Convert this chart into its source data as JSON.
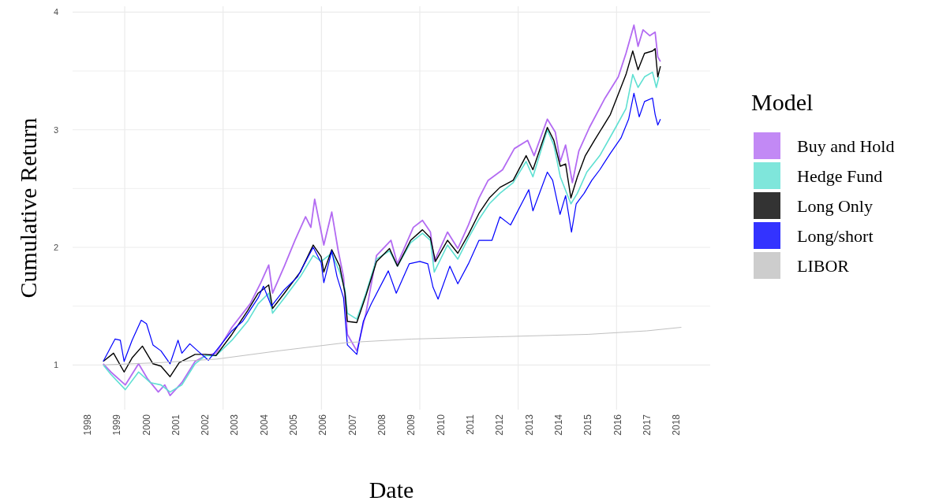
{
  "chart_data": {
    "type": "line",
    "xlabel": "Date",
    "ylabel": "Cumulative Return",
    "legend_title": "Model",
    "legend": "right",
    "grid": true,
    "marker": "none",
    "line_style": "solid",
    "xlim": [
      1997.5,
      2019.15
    ],
    "ylim": [
      0.62,
      4.05
    ],
    "xticks": [
      1998,
      1999,
      2000,
      2001,
      2002,
      2003,
      2004,
      2005,
      2006,
      2007,
      2008,
      2009,
      2010,
      2011,
      2012,
      2013,
      2014,
      2015,
      2016,
      2017,
      2018,
      {
        "value": 1999.27,
        "label": null
      },
      {
        "value": 2002.61,
        "label": null
      },
      {
        "value": 2005.95,
        "label": null
      },
      {
        "value": 2009.29,
        "label": null
      },
      {
        "value": 2012.63,
        "label": null
      },
      {
        "value": 2015.97,
        "label": null
      }
    ],
    "yticks": [
      1,
      2,
      3,
      4,
      {
        "value": 1.5,
        "label": null
      },
      {
        "value": 2.5,
        "label": null
      },
      {
        "value": 3.5,
        "label": null
      }
    ],
    "series": [
      {
        "name": "Buy and Hold",
        "color": "#b36bf2",
        "x": [
          1998.54,
          1998.8,
          1999.29,
          1999.74,
          2000.05,
          2000.41,
          2000.63,
          2000.81,
          2001.21,
          2001.66,
          2002.02,
          2002.37,
          2002.91,
          2003.53,
          2003.89,
          2004.16,
          2004.29,
          2004.69,
          2005.05,
          2005.41,
          2005.59,
          2005.72,
          2006.03,
          2006.3,
          2006.52,
          2006.7,
          2006.83,
          2007.15,
          2007.46,
          2007.82,
          2008.31,
          2008.53,
          2009.07,
          2009.38,
          2009.65,
          2009.78,
          2010.23,
          2010.58,
          2010.94,
          2011.3,
          2011.61,
          2012.1,
          2012.5,
          2012.95,
          2013.17,
          2013.62,
          2013.89,
          2014.06,
          2014.24,
          2014.47,
          2014.69,
          2015.05,
          2015.58,
          2016.03,
          2016.29,
          2016.56,
          2016.7,
          2016.87,
          2017.1,
          2017.28,
          2017.37,
          2017.46
        ],
        "values": [
          1.01,
          0.94,
          0.83,
          1.01,
          0.88,
          0.77,
          0.83,
          0.74,
          0.85,
          1.03,
          1.08,
          1.1,
          1.32,
          1.52,
          1.7,
          1.85,
          1.61,
          1.84,
          2.06,
          2.26,
          2.17,
          2.41,
          2.02,
          2.3,
          1.97,
          1.75,
          1.26,
          1.12,
          1.44,
          1.93,
          2.06,
          1.86,
          2.17,
          2.23,
          2.13,
          1.88,
          2.13,
          1.99,
          2.19,
          2.42,
          2.57,
          2.66,
          2.84,
          2.91,
          2.78,
          3.09,
          2.98,
          2.73,
          2.87,
          2.55,
          2.82,
          3.02,
          3.27,
          3.45,
          3.65,
          3.89,
          3.71,
          3.85,
          3.8,
          3.83,
          3.62,
          3.58
        ]
      },
      {
        "name": "Hedge Fund",
        "color": "#5fe0d2",
        "x": [
          1998.54,
          1998.8,
          1999.29,
          1999.74,
          2000.14,
          2000.5,
          2000.81,
          2001.21,
          2001.66,
          2002.02,
          2002.37,
          2002.91,
          2003.44,
          2003.8,
          2004.16,
          2004.29,
          2004.69,
          2005.23,
          2005.67,
          2005.94,
          2006.3,
          2006.57,
          2006.75,
          2006.83,
          2007.15,
          2007.46,
          2007.82,
          2008.26,
          2008.53,
          2008.98,
          2009.38,
          2009.65,
          2009.78,
          2010.23,
          2010.58,
          2010.94,
          2011.3,
          2011.65,
          2012.01,
          2012.46,
          2012.9,
          2013.13,
          2013.62,
          2013.84,
          2014.06,
          2014.42,
          2014.64,
          2014.96,
          2015.4,
          2015.94,
          2016.29,
          2016.52,
          2016.7,
          2016.92,
          2017.19,
          2017.32,
          2017.41
        ],
        "values": [
          1.0,
          0.92,
          0.79,
          0.94,
          0.85,
          0.83,
          0.77,
          0.83,
          1.01,
          1.08,
          1.08,
          1.21,
          1.37,
          1.52,
          1.61,
          1.44,
          1.57,
          1.75,
          1.93,
          1.88,
          1.95,
          1.79,
          1.64,
          1.44,
          1.39,
          1.61,
          1.9,
          1.97,
          1.84,
          2.04,
          2.12,
          2.06,
          1.79,
          2.02,
          1.9,
          2.08,
          2.24,
          2.37,
          2.46,
          2.55,
          2.73,
          2.6,
          3.0,
          2.87,
          2.6,
          2.37,
          2.46,
          2.64,
          2.78,
          3.02,
          3.18,
          3.47,
          3.36,
          3.45,
          3.49,
          3.36,
          3.45
        ]
      },
      {
        "name": "Long Only",
        "color": "#000000",
        "x": [
          1998.54,
          1998.89,
          1999.25,
          1999.52,
          1999.87,
          2000.23,
          2000.5,
          2000.81,
          2001.12,
          2001.66,
          2002.02,
          2002.37,
          2002.91,
          2003.44,
          2003.8,
          2004.16,
          2004.29,
          2004.69,
          2005.23,
          2005.67,
          2005.94,
          2006.03,
          2006.3,
          2006.57,
          2006.75,
          2006.83,
          2007.15,
          2007.46,
          2007.82,
          2008.26,
          2008.53,
          2008.98,
          2009.38,
          2009.65,
          2009.82,
          2010.23,
          2010.58,
          2010.94,
          2011.3,
          2011.65,
          2012.01,
          2012.46,
          2012.9,
          2013.13,
          2013.62,
          2013.84,
          2014.06,
          2014.24,
          2014.42,
          2014.64,
          2014.91,
          2015.22,
          2015.76,
          2016.29,
          2016.52,
          2016.7,
          2016.92,
          2017.19,
          2017.28,
          2017.37,
          2017.46
        ],
        "values": [
          1.03,
          1.1,
          0.94,
          1.06,
          1.16,
          1.01,
          0.99,
          0.9,
          1.02,
          1.09,
          1.09,
          1.08,
          1.26,
          1.46,
          1.61,
          1.68,
          1.48,
          1.61,
          1.79,
          2.02,
          1.92,
          1.79,
          1.98,
          1.84,
          1.61,
          1.37,
          1.36,
          1.59,
          1.88,
          1.99,
          1.84,
          2.06,
          2.15,
          2.08,
          1.88,
          2.06,
          1.95,
          2.11,
          2.29,
          2.42,
          2.51,
          2.57,
          2.78,
          2.66,
          3.02,
          2.91,
          2.69,
          2.71,
          2.42,
          2.6,
          2.78,
          2.91,
          3.13,
          3.47,
          3.67,
          3.51,
          3.65,
          3.67,
          3.69,
          3.45,
          3.54
        ]
      },
      {
        "name": "Long/short",
        "color": "#0000ff",
        "x": [
          1998.54,
          1998.94,
          1999.12,
          1999.25,
          1999.52,
          1999.83,
          2000.01,
          2000.23,
          2000.5,
          2000.81,
          2001.08,
          2001.21,
          2001.48,
          2001.79,
          2002.11,
          2002.37,
          2002.91,
          2003.27,
          2003.8,
          2003.98,
          2004.25,
          2004.69,
          2005.14,
          2005.67,
          2005.94,
          2006.03,
          2006.3,
          2006.48,
          2006.7,
          2006.83,
          2007.15,
          2007.37,
          2007.64,
          2008.22,
          2008.49,
          2008.93,
          2009.29,
          2009.56,
          2009.74,
          2009.91,
          2010.31,
          2010.58,
          2010.94,
          2011.3,
          2011.74,
          2012.01,
          2012.37,
          2012.99,
          2013.13,
          2013.62,
          2013.8,
          2014.05,
          2014.24,
          2014.44,
          2014.6,
          2014.87,
          2015.13,
          2015.4,
          2015.76,
          2016.12,
          2016.38,
          2016.56,
          2016.74,
          2016.92,
          2017.19,
          2017.28,
          2017.37,
          2017.46
        ],
        "values": [
          1.03,
          1.22,
          1.21,
          1.03,
          1.21,
          1.38,
          1.35,
          1.17,
          1.12,
          1.01,
          1.21,
          1.1,
          1.18,
          1.11,
          1.04,
          1.12,
          1.29,
          1.37,
          1.57,
          1.67,
          1.5,
          1.64,
          1.75,
          2.0,
          1.87,
          1.7,
          1.97,
          1.75,
          1.57,
          1.17,
          1.09,
          1.37,
          1.52,
          1.8,
          1.61,
          1.86,
          1.88,
          1.86,
          1.66,
          1.56,
          1.84,
          1.69,
          1.86,
          2.06,
          2.06,
          2.26,
          2.19,
          2.49,
          2.31,
          2.64,
          2.57,
          2.28,
          2.44,
          2.13,
          2.37,
          2.46,
          2.57,
          2.66,
          2.8,
          2.93,
          3.09,
          3.31,
          3.11,
          3.24,
          3.27,
          3.13,
          3.04,
          3.09
        ]
      },
      {
        "name": "LIBOR",
        "color": "#c0c0c0",
        "x": [
          1998.54,
          2000.5,
          2002.4,
          2004.5,
          2006.8,
          2009.0,
          2012.0,
          2015.0,
          2017.0,
          2018.17
        ],
        "values": [
          1.0,
          1.02,
          1.05,
          1.12,
          1.19,
          1.22,
          1.24,
          1.26,
          1.29,
          1.32
        ]
      }
    ]
  }
}
